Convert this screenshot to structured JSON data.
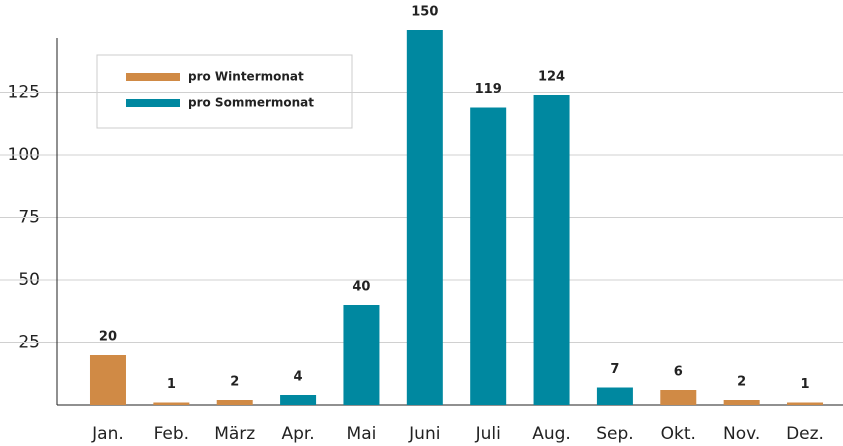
{
  "chart_data": {
    "type": "bar",
    "categories": [
      "Jan.",
      "Feb.",
      "März",
      "Apr.",
      "Mai",
      "Juni",
      "Juli",
      "Aug.",
      "Sep.",
      "Okt.",
      "Nov.",
      "Dez."
    ],
    "series": [
      {
        "name": "pro Wintermonat",
        "color": "#d08a45",
        "values": [
          20,
          1,
          2,
          null,
          null,
          null,
          null,
          null,
          null,
          6,
          2,
          1
        ]
      },
      {
        "name": "pro Sommermonat",
        "color": "#0088a0",
        "values": [
          null,
          null,
          null,
          4,
          40,
          150,
          119,
          124,
          7,
          null,
          null,
          null
        ]
      }
    ],
    "ylim": [
      0,
      150
    ],
    "yticks": [
      25,
      50,
      75,
      100,
      125
    ],
    "grid": true
  }
}
